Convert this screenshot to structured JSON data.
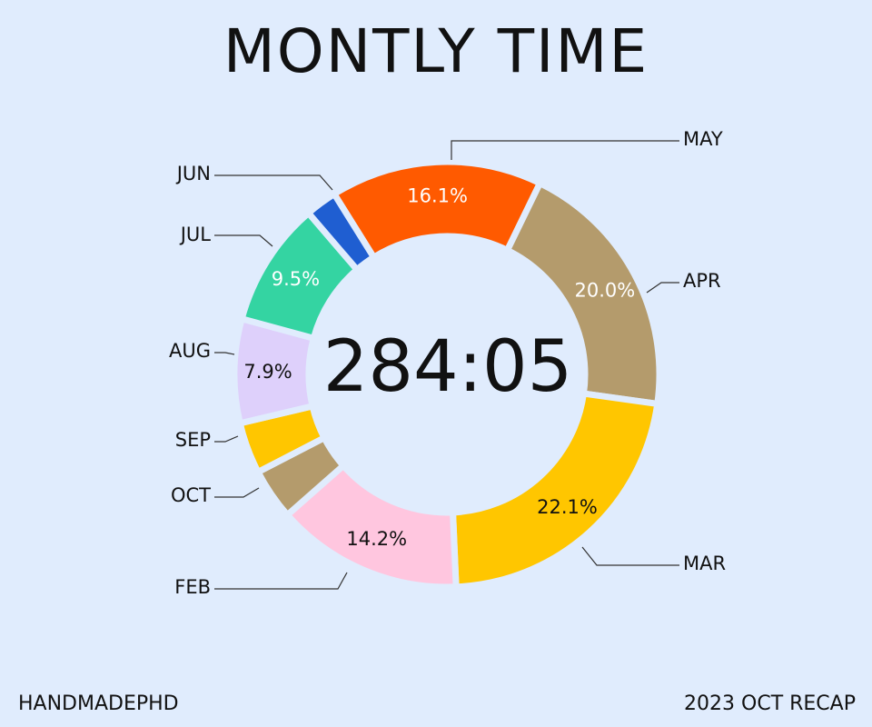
{
  "title": "MONTLY TIME",
  "footer": {
    "left": "HANDMADEPHD",
    "right": "2023 OCT RECAP"
  },
  "chart_data": {
    "type": "pie",
    "style": "donut",
    "center_label": "284:05",
    "categories": [
      "MAY",
      "APR",
      "MAR",
      "FEB",
      "OCT",
      "SEP",
      "AUG",
      "JUL",
      "JUN"
    ],
    "values": [
      16.1,
      20.0,
      22.1,
      14.2,
      3.9,
      3.9,
      7.9,
      9.5,
      2.4
    ],
    "value_labels": [
      "16.1%",
      "20.0%",
      "22.1%",
      "14.2%",
      "",
      "",
      "7.9%",
      "9.5%",
      ""
    ],
    "colors": [
      "#ff5a00",
      "#b49b6c",
      "#ffc600",
      "#ffc6df",
      "#b49b6c",
      "#ffc600",
      "#ded0fb",
      "#34d4a2",
      "#1f5ed1"
    ],
    "label_colors": [
      "#ffffff",
      "#ffffff",
      "#111111",
      "#111111",
      "#111111",
      "#111111",
      "#111111",
      "#ffffff",
      "#ffffff"
    ],
    "unit": "%"
  }
}
